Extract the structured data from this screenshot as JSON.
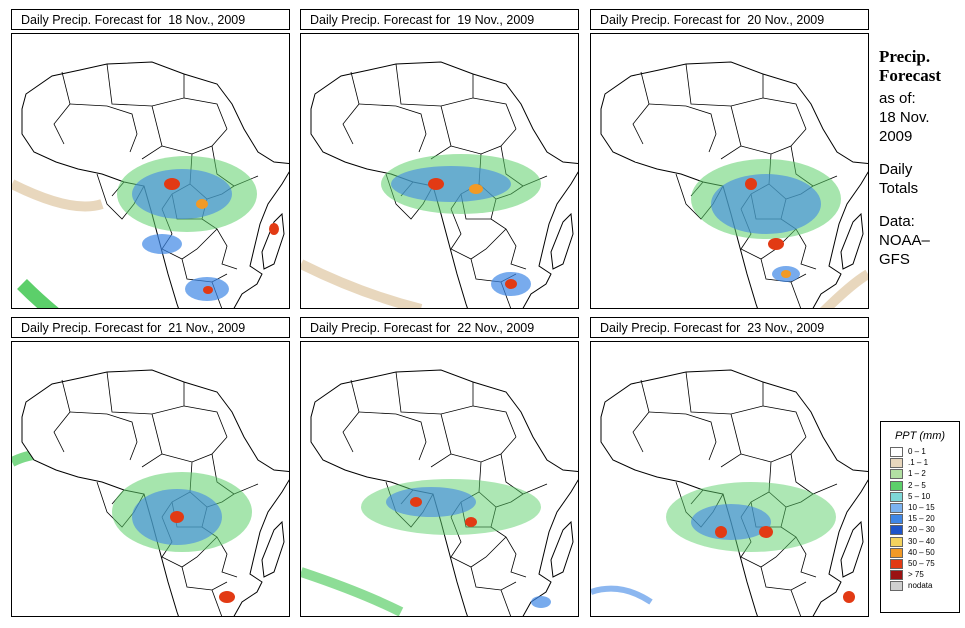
{
  "panels": [
    {
      "title_prefix": "Daily Precip. Forecast for",
      "date": "18 Nov., 2009"
    },
    {
      "title_prefix": "Daily Precip. Forecast for",
      "date": "19 Nov., 2009"
    },
    {
      "title_prefix": "Daily Precip. Forecast for",
      "date": "20 Nov., 2009"
    },
    {
      "title_prefix": "Daily Precip. Forecast for",
      "date": "21 Nov., 2009"
    },
    {
      "title_prefix": "Daily Precip. Forecast for",
      "date": "22 Nov., 2009"
    },
    {
      "title_prefix": "Daily Precip. Forecast for",
      "date": "23 Nov., 2009"
    }
  ],
  "sidebar": {
    "heading_line1": "Precip.",
    "heading_line2": "Forecast",
    "as_of": "as of:",
    "date_line1": "18 Nov.",
    "date_line2": "2009",
    "totals_line1": "Daily",
    "totals_line2": "Totals",
    "data_line1": "Data:",
    "data_line2": "NOAA–",
    "data_line3": "GFS"
  },
  "legend": {
    "title": "PPT (mm)",
    "items": [
      {
        "label": "0 – 1",
        "color": "#ffffff"
      },
      {
        "label": ".1 – 1",
        "color": "#e8d7bd"
      },
      {
        "label": "1 – 2",
        "color": "#b2e0a3"
      },
      {
        "label": "2 – 5",
        "color": "#5ccf6a"
      },
      {
        "label": "5 – 10",
        "color": "#7ed7d7"
      },
      {
        "label": "10 – 15",
        "color": "#7bb3f0"
      },
      {
        "label": "15 – 20",
        "color": "#3f87e6"
      },
      {
        "label": "20 – 30",
        "color": "#1d54c9"
      },
      {
        "label": "30 – 40",
        "color": "#f4d35e"
      },
      {
        "label": "40 – 50",
        "color": "#f29a26"
      },
      {
        "label": "50 – 75",
        "color": "#e23a14"
      },
      {
        "label": "> 75",
        "color": "#9b1212"
      },
      {
        "label": "nodata",
        "color": "#cfcfcf"
      }
    ]
  }
}
